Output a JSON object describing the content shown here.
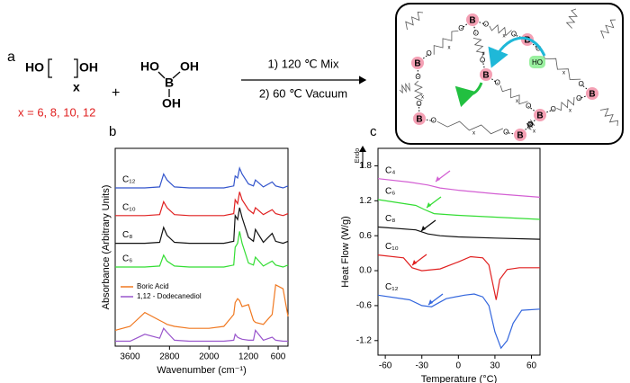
{
  "panel_labels": [
    "a",
    "b",
    "c"
  ],
  "scheme": {
    "diol_left": "HO",
    "diol_right": "OH",
    "subscript": "x",
    "x_values": "x = 6, 8, 10, 12",
    "plus": "+",
    "boric_acid": {
      "ho": "HO",
      "b": "B",
      "oh_right": "OH",
      "oh_bottom": "OH"
    },
    "step1": "1) 120 ℃ Mix",
    "step2": "2) 60 ℃ Vacuum",
    "network": {
      "boron": "B",
      "oxygen": "O",
      "hydroxyl": "HO",
      "repeat": "x"
    }
  },
  "chart_data": [
    {
      "type": "line",
      "x_label": "Wavenumber (cm⁻¹)",
      "y_label": "Absorbance (Arbitrary Units)",
      "x": [
        3900,
        3600,
        3300,
        3000,
        2920,
        2850,
        2700,
        2400,
        2000,
        1700,
        1500,
        1470,
        1420,
        1380,
        1330,
        1200,
        1100,
        1060,
        900,
        720,
        650,
        500,
        400
      ],
      "xlim": [
        3900,
        400
      ],
      "ylim": [
        0,
        10
      ],
      "xticks": [
        3600,
        2800,
        2000,
        1200,
        600
      ],
      "series": [
        {
          "name": "C₁₂",
          "color": "#3355cc",
          "label": "inline",
          "values": [
            8,
            8,
            8,
            8.05,
            8.7,
            8.4,
            8.05,
            8,
            8,
            8,
            8.1,
            8.6,
            8.5,
            9.0,
            8.7,
            8.2,
            8.1,
            8.4,
            8.05,
            8.3,
            8.1,
            8,
            8.1
          ]
        },
        {
          "name": "C₁₀",
          "color": "#e02020",
          "label": "inline",
          "values": [
            6.6,
            6.6,
            6.6,
            6.65,
            7.3,
            7.0,
            6.65,
            6.6,
            6.6,
            6.6,
            6.7,
            7.4,
            7.2,
            7.8,
            7.4,
            6.9,
            6.7,
            7.0,
            6.65,
            6.9,
            6.7,
            6.6,
            6.7
          ]
        },
        {
          "name": "C₈",
          "color": "#111111",
          "label": "inline",
          "values": [
            5.2,
            5.2,
            5.2,
            5.25,
            6.0,
            5.6,
            5.25,
            5.2,
            5.2,
            5.2,
            5.3,
            6.6,
            6.4,
            7.0,
            6.5,
            5.5,
            5.3,
            5.9,
            5.25,
            5.7,
            5.3,
            5.2,
            5.3
          ]
        },
        {
          "name": "C₆",
          "color": "#33dd33",
          "label": "inline",
          "values": [
            4.0,
            4.0,
            4.0,
            4.05,
            4.6,
            4.3,
            4.05,
            4.0,
            4.0,
            4.0,
            4.1,
            5.0,
            5.2,
            5.8,
            5.2,
            4.2,
            4.1,
            4.5,
            4.05,
            4.3,
            4.1,
            4.0,
            4.1
          ]
        },
        {
          "name": "Boric Acid",
          "color": "#f07820",
          "label": "legend",
          "values": [
            0.8,
            1.0,
            1.7,
            1.3,
            1.2,
            1.1,
            1.0,
            0.9,
            0.9,
            1.0,
            1.6,
            2.2,
            2.4,
            2.3,
            2.0,
            2.1,
            1.3,
            1.2,
            1.1,
            1.6,
            3.1,
            2.9,
            1.5
          ]
        },
        {
          "name": "1,12 - Dodecanediol",
          "color": "#9955cc",
          "label": "legend",
          "values": [
            0.25,
            0.25,
            0.6,
            0.4,
            0.9,
            0.7,
            0.3,
            0.25,
            0.25,
            0.25,
            0.3,
            0.6,
            0.45,
            0.4,
            0.35,
            0.3,
            0.3,
            0.8,
            0.3,
            0.45,
            0.3,
            0.25,
            0.25
          ]
        }
      ]
    },
    {
      "type": "line",
      "x_label": "Temperature (°C)",
      "y_label": "Heat Flow (W/g)",
      "endo_label": "Endo",
      "xlim": [
        -66,
        67
      ],
      "ylim": [
        -1.45,
        2.1
      ],
      "xticks": [
        -60,
        -30,
        0,
        30,
        60
      ],
      "yticks": [
        1.8,
        1.2,
        0.6,
        {
          "value": 0,
          "label": "0.0"
        },
        -0.6,
        -1.2
      ],
      "series": [
        {
          "name": "C₄",
          "color": "#d35fd3",
          "label": "inline",
          "x": [
            -66,
            -40,
            -25,
            -15,
            0,
            30,
            67
          ],
          "values": [
            1.58,
            1.52,
            1.47,
            1.42,
            1.38,
            1.32,
            1.26
          ]
        },
        {
          "name": "C₆",
          "color": "#33dd33",
          "label": "inline",
          "x": [
            -66,
            -35,
            -28,
            -20,
            0,
            30,
            67
          ],
          "values": [
            1.22,
            1.12,
            1.05,
            0.98,
            0.95,
            0.92,
            0.88
          ]
        },
        {
          "name": "C₈",
          "color": "#111111",
          "label": "inline",
          "x": [
            -66,
            -35,
            -25,
            -15,
            0,
            30,
            67
          ],
          "values": [
            0.75,
            0.7,
            0.63,
            0.6,
            0.58,
            0.56,
            0.54
          ]
        },
        {
          "name": "C₁₀",
          "color": "#e02020",
          "label": "inline",
          "x": [
            -66,
            -45,
            -38,
            -30,
            -15,
            0,
            10,
            20,
            25,
            28,
            31,
            34,
            40,
            50,
            67
          ],
          "values": [
            0.27,
            0.22,
            0.05,
            0.0,
            0.03,
            0.15,
            0.24,
            0.22,
            0.1,
            -0.2,
            -0.5,
            -0.15,
            0.02,
            0.05,
            0.05
          ]
        },
        {
          "name": "C₁₂",
          "color": "#3366dd",
          "label": "inline",
          "x": [
            -66,
            -40,
            -30,
            -22,
            -10,
            5,
            13,
            20,
            25,
            30,
            35,
            40,
            45,
            52,
            67
          ],
          "values": [
            -0.42,
            -0.5,
            -0.6,
            -0.62,
            -0.48,
            -0.42,
            -0.4,
            -0.45,
            -0.6,
            -1.05,
            -1.33,
            -1.2,
            -0.9,
            -0.68,
            -0.66
          ]
        }
      ]
    }
  ]
}
